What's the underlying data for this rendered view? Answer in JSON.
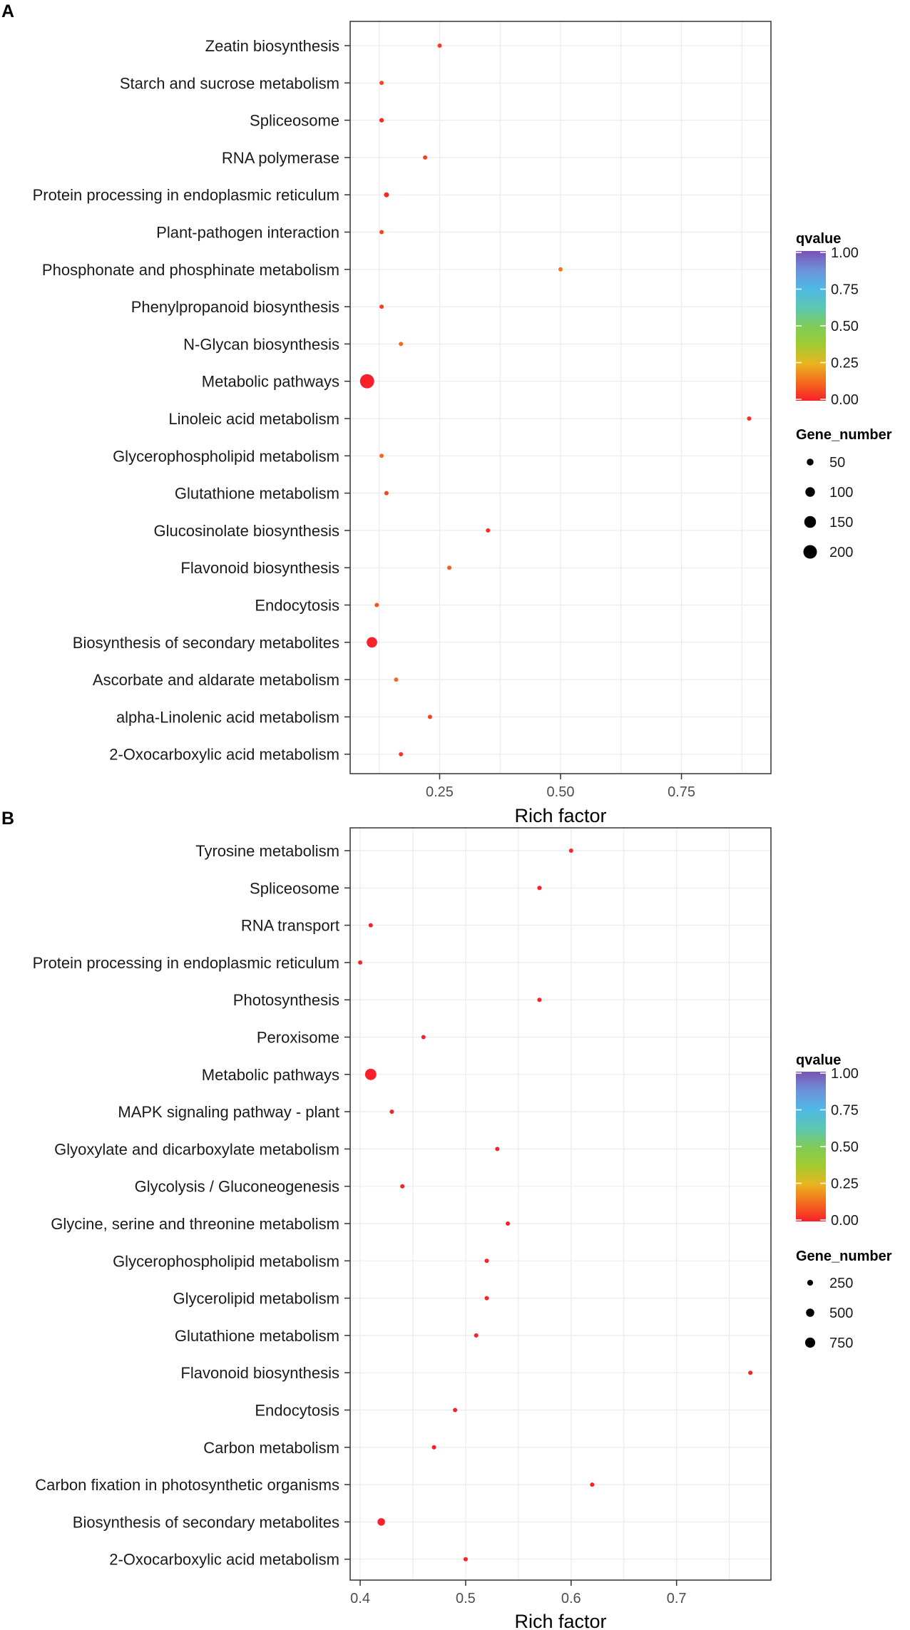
{
  "chart_data": [
    {
      "type": "scatter",
      "panel_label": "A",
      "xlabel": "Rich factor",
      "xlim": [
        0.065,
        0.935
      ],
      "x_ticks": [
        0.25,
        0.5,
        0.75
      ],
      "x_tick_labels": [
        "0.25",
        "0.50",
        "0.75"
      ],
      "color_legend": {
        "title": "qvalue",
        "range": [
          0,
          1
        ],
        "ticks": [
          "1.00",
          "0.75",
          "0.50",
          "0.25",
          "0.00"
        ]
      },
      "size_legend": {
        "title": "Gene_number",
        "values": [
          50,
          100,
          150,
          200
        ],
        "labels": [
          "50",
          "100",
          "150",
          "200"
        ]
      },
      "points": [
        {
          "term": "Zeatin biosynthesis",
          "rich_factor": 0.25,
          "gene_number": 12,
          "qvalue": 0.05
        },
        {
          "term": "Starch and sucrose metabolism",
          "rich_factor": 0.13,
          "gene_number": 20,
          "qvalue": 0.06
        },
        {
          "term": "Spliceosome",
          "rich_factor": 0.13,
          "gene_number": 22,
          "qvalue": 0.02
        },
        {
          "term": "RNA polymerase",
          "rich_factor": 0.22,
          "gene_number": 12,
          "qvalue": 0.05
        },
        {
          "term": "Protein processing in endoplasmic reticulum",
          "rich_factor": 0.14,
          "gene_number": 27,
          "qvalue": 0.01
        },
        {
          "term": "Plant-pathogen interaction",
          "rich_factor": 0.13,
          "gene_number": 20,
          "qvalue": 0.06
        },
        {
          "term": "Phosphonate and phosphinate metabolism",
          "rich_factor": 0.5,
          "gene_number": 8,
          "qvalue": 0.14
        },
        {
          "term": "Phenylpropanoid biosynthesis",
          "rich_factor": 0.13,
          "gene_number": 20,
          "qvalue": 0.05
        },
        {
          "term": "N-Glycan biosynthesis",
          "rich_factor": 0.17,
          "gene_number": 10,
          "qvalue": 0.12
        },
        {
          "term": "Metabolic pathways",
          "rich_factor": 0.1,
          "gene_number": 220,
          "qvalue": 0.0
        },
        {
          "term": "Linoleic acid metabolism",
          "rich_factor": 0.89,
          "gene_number": 10,
          "qvalue": 0.02
        },
        {
          "term": "Glycerophospholipid metabolism",
          "rich_factor": 0.13,
          "gene_number": 15,
          "qvalue": 0.12
        },
        {
          "term": "Glutathione metabolism",
          "rich_factor": 0.14,
          "gene_number": 15,
          "qvalue": 0.06
        },
        {
          "term": "Glucosinolate biosynthesis",
          "rich_factor": 0.35,
          "gene_number": 12,
          "qvalue": 0.02
        },
        {
          "term": "Flavonoid biosynthesis",
          "rich_factor": 0.27,
          "gene_number": 10,
          "qvalue": 0.1
        },
        {
          "term": "Endocytosis",
          "rich_factor": 0.12,
          "gene_number": 18,
          "qvalue": 0.08
        },
        {
          "term": "Biosynthesis of secondary metabolites",
          "rich_factor": 0.11,
          "gene_number": 120,
          "qvalue": 0.0
        },
        {
          "term": "Ascorbate and aldarate metabolism",
          "rich_factor": 0.16,
          "gene_number": 12,
          "qvalue": 0.12
        },
        {
          "term": "alpha-Linolenic acid metabolism",
          "rich_factor": 0.23,
          "gene_number": 12,
          "qvalue": 0.05
        },
        {
          "term": "2-Oxocarboxylic acid metabolism",
          "rich_factor": 0.17,
          "gene_number": 14,
          "qvalue": 0.04
        }
      ]
    },
    {
      "type": "scatter",
      "panel_label": "B",
      "xlabel": "Rich factor",
      "xlim": [
        0.3905,
        0.7895
      ],
      "x_ticks": [
        0.4,
        0.5,
        0.6,
        0.7
      ],
      "x_tick_labels": [
        "0.4",
        "0.5",
        "0.6",
        "0.7"
      ],
      "color_legend": {
        "title": "qvalue",
        "range": [
          0,
          1
        ],
        "ticks": [
          "1.00",
          "0.75",
          "0.50",
          "0.25",
          "0.00"
        ]
      },
      "size_legend": {
        "title": "Gene_number",
        "values": [
          250,
          500,
          750
        ],
        "labels": [
          "250",
          "500",
          "750"
        ]
      },
      "points": [
        {
          "term": "Tyrosine metabolism",
          "rich_factor": 0.6,
          "gene_number": 40,
          "qvalue": 0.01
        },
        {
          "term": "Spliceosome",
          "rich_factor": 0.57,
          "gene_number": 140,
          "qvalue": 0.0
        },
        {
          "term": "RNA transport",
          "rich_factor": 0.41,
          "gene_number": 70,
          "qvalue": 0.0
        },
        {
          "term": "Protein processing in endoplasmic reticulum",
          "rich_factor": 0.4,
          "gene_number": 70,
          "qvalue": 0.0
        },
        {
          "term": "Photosynthesis",
          "rich_factor": 0.57,
          "gene_number": 60,
          "qvalue": 0.0
        },
        {
          "term": "Peroxisome",
          "rich_factor": 0.46,
          "gene_number": 60,
          "qvalue": 0.0
        },
        {
          "term": "Metabolic pathways",
          "rich_factor": 0.41,
          "gene_number": 950,
          "qvalue": 0.0
        },
        {
          "term": "MAPK signaling pathway - plant",
          "rich_factor": 0.43,
          "gene_number": 60,
          "qvalue": 0.0
        },
        {
          "term": "Glyoxylate and dicarboxylate metabolism",
          "rich_factor": 0.53,
          "gene_number": 60,
          "qvalue": 0.0
        },
        {
          "term": "Glycolysis / Gluconeogenesis",
          "rich_factor": 0.44,
          "gene_number": 70,
          "qvalue": 0.0
        },
        {
          "term": "Glycine, serine and threonine metabolism",
          "rich_factor": 0.54,
          "gene_number": 50,
          "qvalue": 0.0
        },
        {
          "term": "Glycerophospholipid metabolism",
          "rich_factor": 0.52,
          "gene_number": 60,
          "qvalue": 0.0
        },
        {
          "term": "Glycerolipid metabolism",
          "rich_factor": 0.52,
          "gene_number": 50,
          "qvalue": 0.0
        },
        {
          "term": "Glutathione metabolism",
          "rich_factor": 0.51,
          "gene_number": 60,
          "qvalue": 0.0
        },
        {
          "term": "Flavonoid biosynthesis",
          "rich_factor": 0.77,
          "gene_number": 40,
          "qvalue": 0.0
        },
        {
          "term": "Endocytosis",
          "rich_factor": 0.49,
          "gene_number": 80,
          "qvalue": 0.0
        },
        {
          "term": "Carbon metabolism",
          "rich_factor": 0.47,
          "gene_number": 130,
          "qvalue": 0.0
        },
        {
          "term": "Carbon fixation in photosynthetic organisms",
          "rich_factor": 0.62,
          "gene_number": 50,
          "qvalue": 0.0
        },
        {
          "term": "Biosynthesis of secondary metabolites",
          "rich_factor": 0.42,
          "gene_number": 420,
          "qvalue": 0.0
        },
        {
          "term": "2-Oxocarboxylic acid metabolism",
          "rich_factor": 0.5,
          "gene_number": 50,
          "qvalue": 0.0
        }
      ]
    }
  ]
}
